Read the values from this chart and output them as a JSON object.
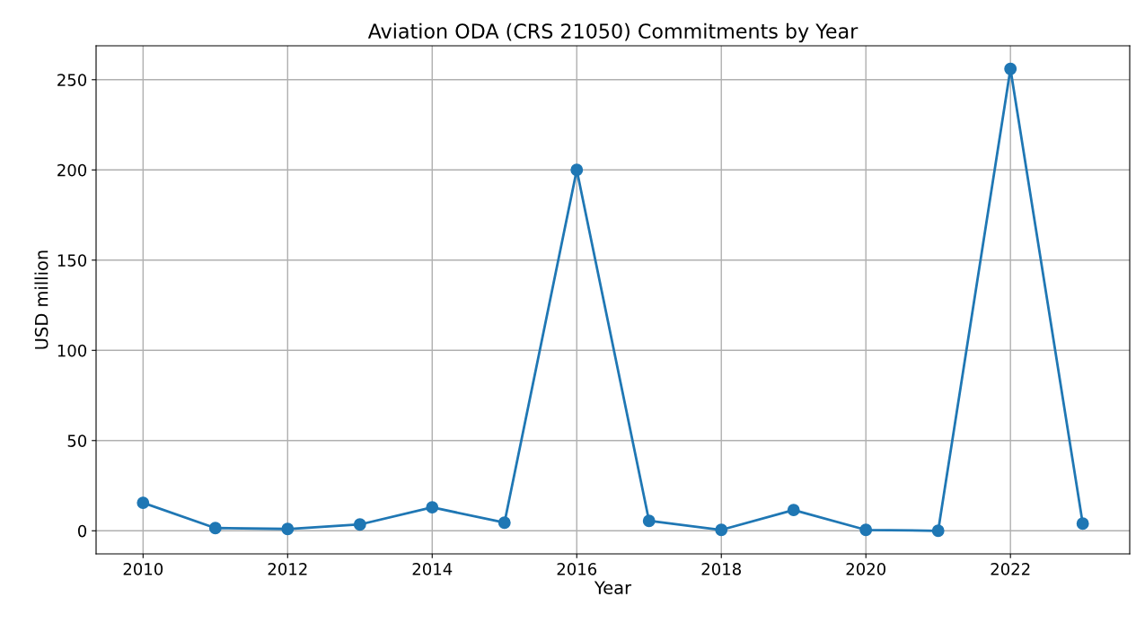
{
  "chart_data": {
    "type": "line",
    "title": "Aviation ODA (CRS 21050) Commitments by Year",
    "xlabel": "Year",
    "ylabel": "USD million",
    "x": [
      2010,
      2011,
      2012,
      2013,
      2014,
      2015,
      2016,
      2017,
      2018,
      2019,
      2020,
      2021,
      2022,
      2023
    ],
    "series": [
      {
        "color": "#1f77b4",
        "values": [
          15.5,
          1.5,
          1,
          3.5,
          13,
          4.5,
          200,
          5.5,
          0.5,
          11.5,
          0.5,
          0,
          256,
          4
        ]
      }
    ],
    "xlim": [
      2009.35,
      2023.65
    ],
    "xticks": [
      2010,
      2012,
      2014,
      2016,
      2018,
      2020,
      2022
    ],
    "ylim": [
      -12.8,
      268.8
    ],
    "yticks": [
      0,
      50,
      100,
      150,
      200,
      250
    ],
    "grid": true,
    "marker": "circle",
    "line_style": "solid"
  }
}
